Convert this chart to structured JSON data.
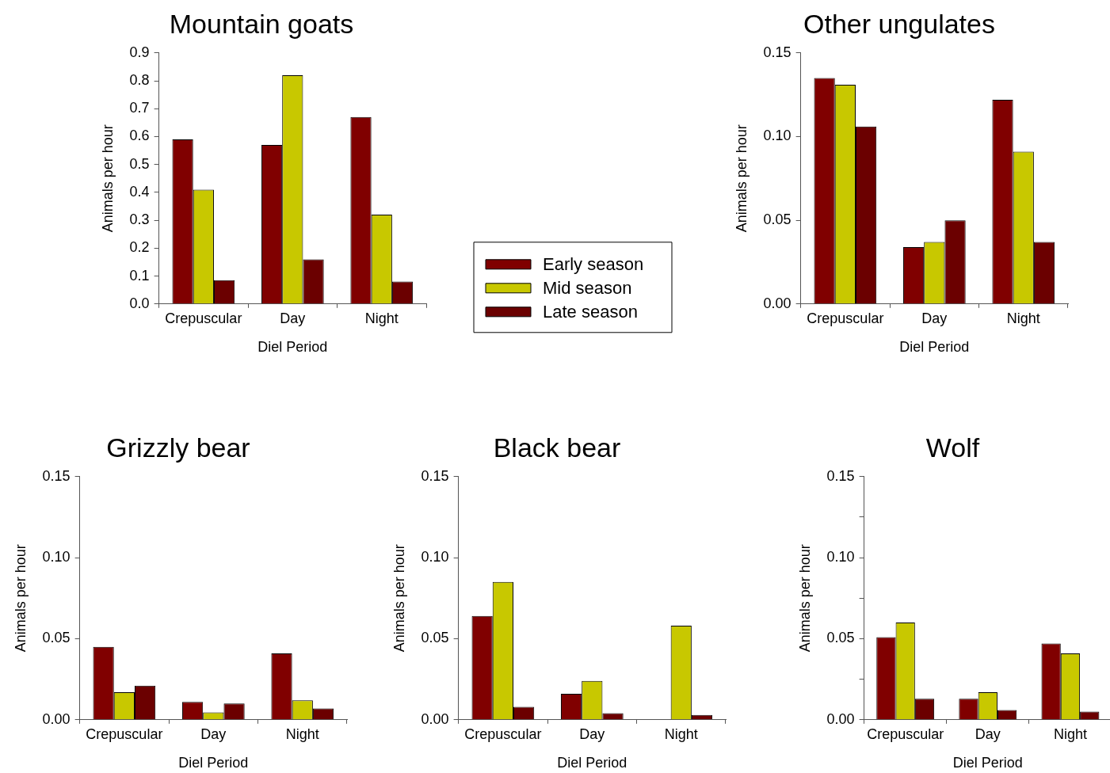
{
  "chart_data": [
    {
      "type": "bar",
      "title": "Mountain goats",
      "xlabel": "Diel Period",
      "ylabel": "Animals per hour",
      "categories": [
        "Crepuscular",
        "Day",
        "Night"
      ],
      "legend": "right",
      "ylim": [
        0,
        0.9
      ],
      "yticks": [
        {
          "value": 0,
          "label": "0.0"
        },
        0.1,
        0.2,
        0.3,
        0.4,
        0.5,
        0.6,
        0.7,
        0.8,
        0.9
      ],
      "series": [
        {
          "name": "Early season",
          "color": "#800000",
          "values": [
            0.59,
            0.57,
            0.67
          ]
        },
        {
          "name": "Mid season",
          "color": "#c8c800",
          "values": [
            0.41,
            0.82,
            0.32
          ]
        },
        {
          "name": "Late season",
          "color": "#6b0000",
          "values": [
            0.085,
            0.16,
            0.08
          ]
        }
      ]
    },
    {
      "type": "bar",
      "title": "Other ungulates",
      "xlabel": "Diel Period",
      "ylabel": "Animals per hour",
      "categories": [
        "Crepuscular",
        "Day",
        "Night"
      ],
      "ylim": [
        0,
        0.15
      ],
      "yticks": [
        {
          "value": 0,
          "label": "0.00"
        },
        {
          "value": 0.05,
          "label": "0.05"
        },
        {
          "value": 0.1,
          "label": "0.10"
        },
        0.15
      ],
      "series": [
        {
          "color": "#800000",
          "values": [
            0.135,
            0.034,
            0.122
          ]
        },
        {
          "color": "#c8c800",
          "values": [
            0.131,
            0.037,
            0.091
          ]
        },
        {
          "color": "#6b0000",
          "values": [
            0.106,
            0.05,
            0.037
          ]
        }
      ]
    },
    {
      "type": "bar",
      "title": "Grizzly bear",
      "xlabel": "Diel Period",
      "ylabel": "Animals per hour",
      "categories": [
        "Crepuscular",
        "Day",
        "Night"
      ],
      "ylim": [
        0,
        0.15
      ],
      "yticks": [
        {
          "value": 0,
          "label": "0.00"
        },
        {
          "value": 0.05,
          "label": "0.05"
        },
        {
          "value": 0.1,
          "label": "0.10"
        },
        0.15
      ],
      "series": [
        {
          "color": "#800000",
          "values": [
            0.045,
            0.011,
            0.041
          ]
        },
        {
          "color": "#c8c800",
          "values": [
            0.017,
            0.0045,
            0.012
          ]
        },
        {
          "color": "#6b0000",
          "values": [
            0.021,
            0.01,
            0.007
          ]
        }
      ]
    },
    {
      "type": "bar",
      "title": "Black bear",
      "xlabel": "Diel Period",
      "ylabel": "Animals per hour",
      "categories": [
        "Crepuscular",
        "Day",
        "Night"
      ],
      "ylim": [
        0,
        0.15
      ],
      "yticks": [
        {
          "value": 0,
          "label": "0.00"
        },
        {
          "value": 0.05,
          "label": "0.05"
        },
        {
          "value": 0.1,
          "label": "0.10"
        },
        0.15
      ],
      "series": [
        {
          "color": "#800000",
          "values": [
            0.064,
            0.016,
            0
          ]
        },
        {
          "color": "#c8c800",
          "values": [
            0.085,
            0.024,
            0.058
          ]
        },
        {
          "color": "#6b0000",
          "values": [
            0.008,
            0.004,
            0.003
          ]
        }
      ]
    },
    {
      "type": "bar",
      "title": "Wolf",
      "xlabel": "Diel Period",
      "ylabel": "Animals per hour",
      "categories": [
        "Crepuscular",
        "Day",
        "Night"
      ],
      "ylim": [
        0,
        0.15
      ],
      "yticks": [
        {
          "value": 0,
          "label": "0.00"
        },
        {
          "value": 0.025,
          "label": null
        },
        {
          "value": 0.05,
          "label": "0.05"
        },
        {
          "value": 0.075,
          "label": null
        },
        {
          "value": 0.1,
          "label": "0.10"
        },
        {
          "value": 0.125,
          "label": null
        },
        0.15
      ],
      "series": [
        {
          "color": "#800000",
          "values": [
            0.051,
            0.013,
            0.047
          ]
        },
        {
          "color": "#c8c800",
          "values": [
            0.06,
            0.017,
            0.041
          ]
        },
        {
          "color": "#6b0000",
          "values": [
            0.013,
            0.006,
            0.005
          ]
        }
      ]
    }
  ]
}
